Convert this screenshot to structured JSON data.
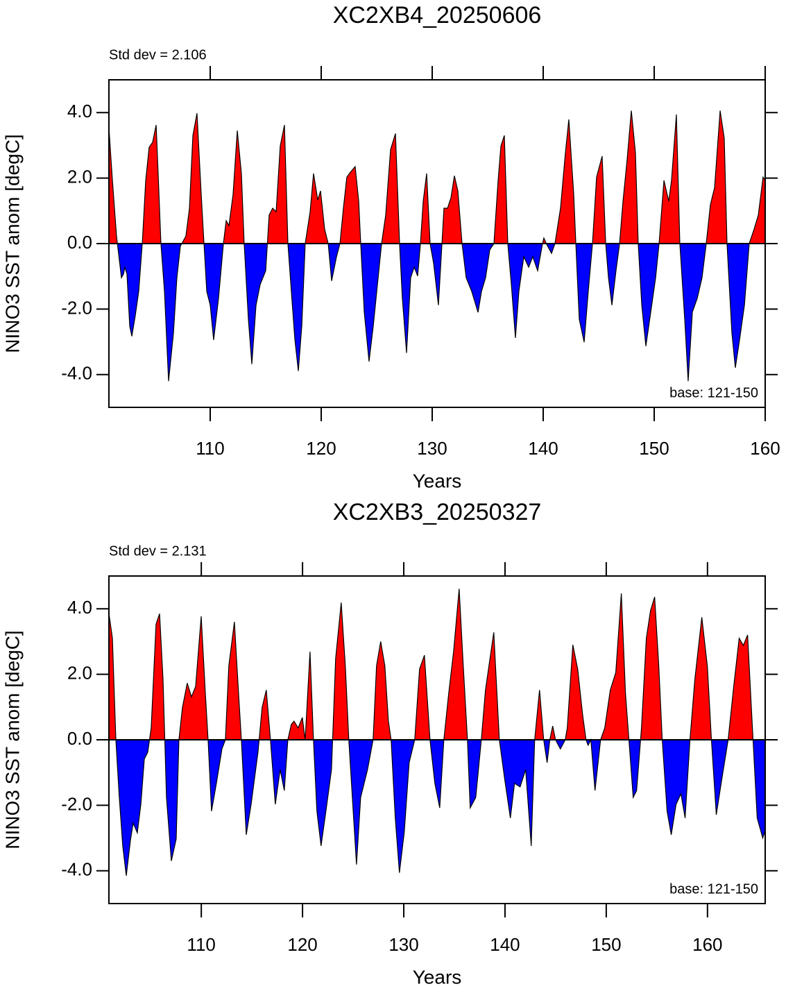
{
  "chart_data": [
    {
      "type": "area",
      "title": "XC2XB4_20250606",
      "annotation": "Std dev = 2.106",
      "base_note": "base: 121-150",
      "x_label": "Years",
      "y_label": "NINO3 SST anom [degC]",
      "pos_color": "#ff0000",
      "neg_color": "#0000ff",
      "line_color": "#000000",
      "xlim": [
        100.875,
        160
      ],
      "ylim": [
        -5,
        5
      ],
      "xticks": [
        110,
        120,
        130,
        140,
        150,
        160
      ],
      "yticks": [
        {
          "value": -4,
          "label": "-4.0"
        },
        {
          "value": -2,
          "label": "-2.0"
        },
        {
          "value": 0,
          "label": "0.0"
        },
        {
          "value": 2,
          "label": "2.0"
        },
        {
          "value": 4,
          "label": "4.0"
        }
      ],
      "x": [
        100.88,
        101.19,
        101.56,
        102.0,
        102.19,
        102.31,
        102.5,
        102.75,
        102.94,
        103.25,
        103.56,
        103.88,
        104.19,
        104.5,
        104.81,
        105.13,
        105.31,
        105.56,
        105.88,
        106.25,
        106.69,
        107.0,
        107.31,
        107.81,
        108.13,
        108.44,
        108.81,
        109.19,
        109.44,
        109.69,
        110.0,
        110.31,
        110.75,
        111.19,
        111.44,
        111.69,
        112.06,
        112.44,
        112.81,
        113.06,
        113.44,
        113.75,
        114.13,
        114.5,
        115.0,
        115.31,
        115.63,
        115.94,
        116.31,
        116.69,
        117.0,
        117.31,
        117.63,
        117.94,
        118.25,
        118.56,
        119.0,
        119.31,
        119.69,
        119.94,
        120.31,
        120.63,
        120.94,
        121.38,
        121.69,
        122.0,
        122.31,
        122.63,
        123.06,
        123.38,
        123.56,
        123.88,
        124.31,
        124.69,
        125.13,
        125.44,
        125.81,
        126.25,
        126.69,
        127.06,
        127.31,
        127.69,
        128.06,
        128.38,
        128.69,
        128.94,
        129.19,
        129.5,
        129.81,
        130.13,
        130.56,
        130.88,
        131.06,
        131.38,
        131.69,
        132.0,
        132.31,
        132.69,
        133.06,
        133.56,
        134.13,
        134.44,
        134.81,
        135.19,
        135.56,
        135.94,
        136.19,
        136.5,
        136.81,
        137.13,
        137.5,
        137.81,
        138.25,
        138.69,
        139.06,
        139.5,
        139.94,
        140.06,
        140.31,
        140.75,
        141.06,
        141.56,
        142.0,
        142.31,
        142.75,
        142.94,
        143.25,
        143.69,
        144.06,
        144.44,
        144.81,
        145.31,
        145.63,
        145.88,
        146.19,
        146.56,
        146.88,
        147.19,
        147.56,
        147.94,
        148.31,
        148.56,
        148.88,
        149.25,
        149.69,
        150.13,
        150.44,
        150.88,
        151.31,
        151.56,
        152.0,
        152.31,
        152.75,
        153.06,
        153.44,
        153.88,
        154.31,
        154.69,
        155.06,
        155.44,
        155.94,
        156.31,
        156.56,
        157.0,
        157.31,
        157.69,
        158.13,
        158.56,
        159.0,
        159.38,
        159.81,
        160.0
      ],
      "values": [
        3.51,
        1.93,
        0.23,
        -1.04,
        -0.93,
        -0.72,
        -0.93,
        -2.52,
        -2.83,
        -2.2,
        -1.46,
        0,
        1.93,
        2.94,
        3.09,
        3.62,
        2.14,
        0,
        -1.46,
        -4.2,
        -2.73,
        -1.04,
        -0.08,
        0.23,
        1.08,
        3.3,
        3.98,
        1.5,
        0,
        -1.46,
        -1.88,
        -2.94,
        -1.67,
        0,
        0.7,
        0.55,
        1.5,
        3.45,
        2.14,
        0,
        -2.31,
        -3.68,
        -1.88,
        -1.25,
        -0.83,
        0.87,
        1.08,
        0.97,
        2.98,
        3.62,
        0,
        -1.46,
        -2.94,
        -3.89,
        -2.52,
        0,
        0.97,
        2.14,
        1.33,
        1.61,
        0.44,
        0,
        -1.14,
        -0.4,
        0,
        1.08,
        2.03,
        2.18,
        2.35,
        1.29,
        0,
        -2.1,
        -3.6,
        -2.52,
        -1.04,
        0,
        0.87,
        2.87,
        3.36,
        0,
        -1.67,
        -3.34,
        -1.04,
        -0.72,
        -0.99,
        0,
        1.29,
        2.14,
        0,
        -0.61,
        -1.88,
        0,
        1.08,
        1.08,
        1.4,
        2.07,
        1.61,
        0,
        -1.04,
        -1.46,
        -2.1,
        -1.46,
        -1.04,
        -0.19,
        0,
        1.93,
        2.98,
        3.3,
        0,
        -1.25,
        -2.88,
        -1.46,
        -0.4,
        -0.72,
        -0.4,
        -0.83,
        0,
        0.17,
        -0.02,
        -0.3,
        0,
        1.08,
        2.77,
        3.79,
        1.5,
        0,
        -2.31,
        -3.01,
        -1.46,
        0,
        2.03,
        2.67,
        0,
        -1.04,
        -1.88,
        -0.83,
        0,
        1.29,
        2.56,
        4.06,
        2.77,
        0,
        -1.88,
        -3.13,
        -2.09,
        -1.04,
        0,
        1.93,
        1.29,
        1.93,
        3.94,
        0,
        -2.31,
        -4.2,
        -2.09,
        -1.67,
        -1.04,
        0,
        1.18,
        1.71,
        4.06,
        3.22,
        0,
        -2.73,
        -3.79,
        -2.94,
        -1.88,
        0,
        0.44,
        0.87,
        2.03,
        1.93
      ]
    },
    {
      "type": "area",
      "title": "XC2XB3_20250327",
      "annotation": "Std dev = 2.131",
      "base_note": "base: 121-150",
      "x_label": "Years",
      "y_label": "NINO3 SST anom [degC]",
      "pos_color": "#ff0000",
      "neg_color": "#0000ff",
      "line_color": "#000000",
      "xlim": [
        100.875,
        165.7
      ],
      "ylim": [
        -5,
        5
      ],
      "xticks": [
        110,
        120,
        130,
        140,
        150,
        160
      ],
      "yticks": [
        {
          "value": -4,
          "label": "-4.0"
        },
        {
          "value": -2,
          "label": "-2.0"
        },
        {
          "value": 0,
          "label": "0.0"
        },
        {
          "value": 2,
          "label": "2.0"
        },
        {
          "value": 4,
          "label": "4.0"
        }
      ],
      "x": [
        100.88,
        101.22,
        101.56,
        101.9,
        102.24,
        102.59,
        103.0,
        103.27,
        103.68,
        104.03,
        104.37,
        104.71,
        105.05,
        105.53,
        105.88,
        106.22,
        106.56,
        107.04,
        107.52,
        107.79,
        108.14,
        108.61,
        109.03,
        109.44,
        109.99,
        110.4,
        110.67,
        111.01,
        111.49,
        112.04,
        112.38,
        112.72,
        113.27,
        113.68,
        113.96,
        114.44,
        114.92,
        115.6,
        116.01,
        116.42,
        116.83,
        117.31,
        117.79,
        118.2,
        118.55,
        118.89,
        119.16,
        119.57,
        119.98,
        120.26,
        120.74,
        121.08,
        121.42,
        121.83,
        122.31,
        122.86,
        123.27,
        123.82,
        124.23,
        124.57,
        124.92,
        125.33,
        125.74,
        126.42,
        126.97,
        127.31,
        127.72,
        128.13,
        128.48,
        128.75,
        129.16,
        129.57,
        130.05,
        130.53,
        131.08,
        131.56,
        132.04,
        132.59,
        133.07,
        133.55,
        133.96,
        134.44,
        134.92,
        135.47,
        135.88,
        136.29,
        136.56,
        137.11,
        137.66,
        138.07,
        138.89,
        139.44,
        139.98,
        140.53,
        140.94,
        141.49,
        142.04,
        142.59,
        142.93,
        143.41,
        143.82,
        144.16,
        144.43,
        144.71,
        144.99,
        145.47,
        145.95,
        146.15,
        146.7,
        147.18,
        147.66,
        148.0,
        148.21,
        148.48,
        148.89,
        149.44,
        149.85,
        150.4,
        150.94,
        151.49,
        151.9,
        152.24,
        152.66,
        153.0,
        153.48,
        153.96,
        154.37,
        154.78,
        155.19,
        155.53,
        156.01,
        156.42,
        156.9,
        157.38,
        157.79,
        158.27,
        158.75,
        159.44,
        159.99,
        160.39,
        160.87,
        161.35,
        162.04,
        162.59,
        163.13,
        163.54,
        163.96,
        164.5,
        164.91,
        165.46,
        165.67
      ],
      "values": [
        3.85,
        3.1,
        0,
        -1.76,
        -3.24,
        -4.15,
        -3.07,
        -2.54,
        -2.84,
        -1.97,
        -0.59,
        -0.38,
        0.36,
        3.53,
        3.85,
        1.84,
        -1.76,
        -3.7,
        -3.03,
        0,
        0.99,
        1.73,
        1.31,
        1.63,
        3.77,
        1.42,
        0,
        -2.18,
        -1.33,
        -0.28,
        0,
        2.26,
        3.6,
        1.42,
        0,
        -2.9,
        -1.97,
        -0.38,
        0.99,
        1.52,
        0,
        -1.97,
        -0.91,
        -1.55,
        0,
        0.47,
        0.57,
        0.36,
        0.68,
        0,
        2.69,
        0,
        -2.18,
        -3.24,
        -2.18,
        -0.91,
        2.48,
        4.19,
        2.24,
        0,
        -1.76,
        -3.81,
        -1.76,
        -0.91,
        0,
        2.26,
        3.0,
        2.26,
        0.57,
        0,
        -2.39,
        -4.06,
        -2.82,
        -0.7,
        0,
        2.16,
        2.58,
        0,
        -1.33,
        -2.08,
        0,
        1.42,
        2.69,
        4.61,
        2.24,
        0,
        -2.08,
        -1.76,
        0,
        1.52,
        3.28,
        0,
        -1.23,
        -2.39,
        -1.33,
        -1.44,
        -0.91,
        -3.24,
        0,
        1.52,
        0,
        -0.7,
        0,
        0.42,
        0,
        -0.28,
        0,
        0.36,
        2.9,
        2.16,
        0.78,
        0,
        -0.17,
        0,
        -1.55,
        0,
        0.36,
        1.52,
        2.05,
        4.47,
        1.42,
        0,
        -1.76,
        -1.55,
        0.36,
        3.1,
        3.94,
        4.36,
        2.24,
        0,
        -2.18,
        -2.9,
        -1.97,
        -1.65,
        -2.39,
        0,
        1.84,
        3.74,
        2.24,
        0,
        -2.29,
        -1.33,
        0,
        1.63,
        3.1,
        2.88,
        3.2,
        0,
        -2.39,
        -3.0,
        -2.79
      ]
    }
  ]
}
